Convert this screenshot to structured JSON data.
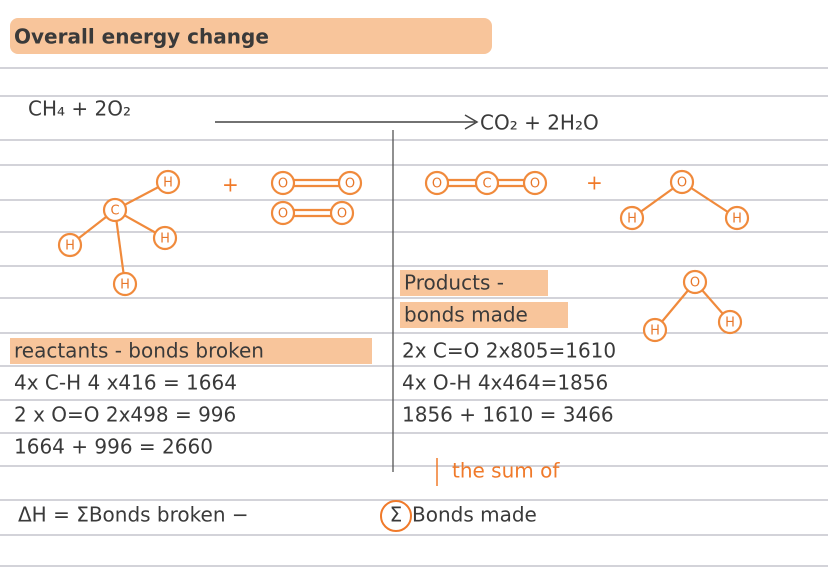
{
  "title": "Overall energy change",
  "equation": {
    "reactants": "CH₄ + 2O₂",
    "products": "CO₂ + 2H₂O"
  },
  "diagram": {
    "atoms": [
      "C",
      "H",
      "H",
      "H",
      "H",
      "O",
      "O",
      "O",
      "O",
      "O",
      "C",
      "O",
      "O",
      "H",
      "H",
      "O",
      "H",
      "H"
    ],
    "plus": [
      "+",
      "+"
    ]
  },
  "products": {
    "heading": [
      "Products -",
      "bonds made"
    ],
    "lines": [
      "2x C=O   2x805=1610",
      "4x O-H   4x464=1856",
      "1856 + 1610 = 3466"
    ]
  },
  "reactants": {
    "heading": "reactants - bonds broken",
    "lines": [
      "4x C-H      4 x416 = 1664",
      "2 x O=O      2x498 = 996",
      "1664 + 996 = 2660"
    ]
  },
  "note": "the sum of",
  "formula": [
    "ΔH = ΣBonds broken −",
    "Σ",
    "Bonds made"
  ]
}
